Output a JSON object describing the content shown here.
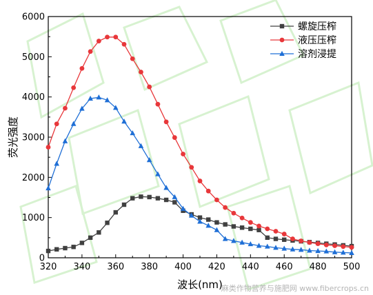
{
  "chart_data": {
    "type": "line",
    "title": "",
    "xlabel": "波长(nm)",
    "ylabel": "荧光强度",
    "xlim": [
      320,
      500
    ],
    "ylim": [
      0,
      6000
    ],
    "x_ticks": [
      320,
      340,
      360,
      380,
      400,
      420,
      440,
      460,
      480,
      500
    ],
    "y_ticks": [
      0,
      1000,
      2000,
      3000,
      4000,
      5000,
      6000
    ],
    "grid": false,
    "legend_position": "top-right",
    "series": [
      {
        "name": "螺旋压榨",
        "color": "#404040",
        "marker": "square",
        "x": [
          320,
          325,
          330,
          335,
          340,
          345,
          350,
          355,
          360,
          365,
          370,
          375,
          380,
          385,
          390,
          395,
          400,
          405,
          410,
          415,
          420,
          425,
          430,
          435,
          440,
          445,
          450,
          455,
          460,
          465,
          470,
          475,
          480,
          485,
          490,
          495,
          500
        ],
        "values": [
          170,
          210,
          240,
          270,
          370,
          500,
          630,
          870,
          1130,
          1320,
          1480,
          1520,
          1510,
          1480,
          1440,
          1380,
          1170,
          1080,
          1000,
          950,
          880,
          830,
          780,
          750,
          720,
          690,
          500,
          470,
          450,
          430,
          410,
          390,
          370,
          350,
          330,
          310,
          290
        ]
      },
      {
        "name": "液压压榨",
        "color": "#e8373a",
        "marker": "circle",
        "x": [
          320,
          325,
          330,
          335,
          340,
          345,
          350,
          355,
          360,
          365,
          370,
          375,
          380,
          385,
          390,
          395,
          400,
          405,
          410,
          415,
          420,
          425,
          430,
          435,
          440,
          445,
          450,
          455,
          460,
          465,
          470,
          475,
          480,
          485,
          490,
          495,
          500
        ],
        "values": [
          2750,
          3330,
          3720,
          4230,
          4710,
          5130,
          5390,
          5490,
          5490,
          5310,
          4950,
          4620,
          4250,
          3820,
          3380,
          2990,
          2580,
          2250,
          1910,
          1660,
          1440,
          1250,
          1110,
          990,
          880,
          790,
          720,
          660,
          590,
          470,
          420,
          380,
          350,
          320,
          300,
          280,
          260
        ]
      },
      {
        "name": "溶剂浸提",
        "color": "#1f6fd6",
        "marker": "triangle",
        "x": [
          320,
          325,
          330,
          335,
          340,
          345,
          350,
          355,
          360,
          365,
          370,
          375,
          380,
          385,
          390,
          395,
          400,
          405,
          410,
          415,
          420,
          425,
          430,
          435,
          440,
          445,
          450,
          455,
          460,
          465,
          470,
          475,
          480,
          485,
          490,
          495,
          500
        ],
        "values": [
          1730,
          2340,
          2900,
          3330,
          3710,
          3960,
          3990,
          3920,
          3730,
          3390,
          3100,
          2780,
          2430,
          2080,
          1740,
          1510,
          1220,
          1050,
          900,
          800,
          690,
          470,
          420,
          380,
          340,
          300,
          280,
          250,
          230,
          210,
          200,
          180,
          170,
          160,
          140,
          130,
          120
        ]
      }
    ]
  },
  "watermark_text": "麻类作物营养与施肥网 www.fibercrops.cn"
}
